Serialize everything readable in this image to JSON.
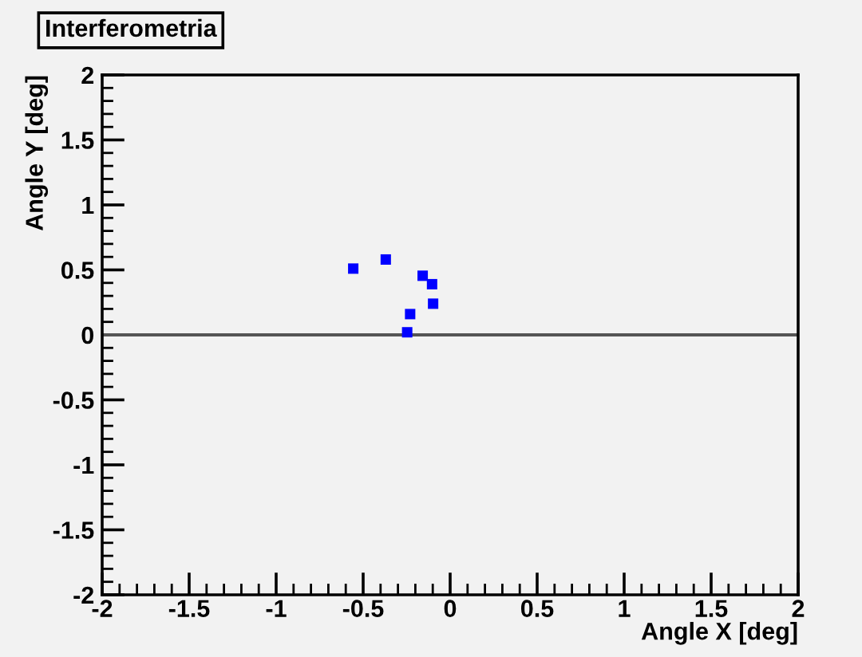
{
  "chart_data": {
    "type": "scatter",
    "title": "Interferometria",
    "xlabel": "Angle X [deg]",
    "ylabel": "Angle Y [deg]",
    "x": [
      -0.557,
      -0.37,
      -0.158,
      -0.104,
      -0.098,
      -0.23,
      -0.247
    ],
    "series": [
      {
        "color": "#0000ff",
        "values": [
          0.51,
          0.58,
          0.455,
          0.39,
          0.24,
          0.16,
          0.02
        ]
      }
    ],
    "marker": "square",
    "xlim": [
      -2,
      2
    ],
    "ylim": [
      -2,
      2
    ],
    "xticks": [
      -2,
      -1.5,
      -1,
      -0.5,
      0,
      0.5,
      1,
      1.5,
      2
    ],
    "yticks": [
      -2,
      -1.5,
      -1,
      -0.5,
      0,
      0.5,
      1,
      1.5,
      2
    ],
    "ref_lines": [
      {
        "axis": "y",
        "value": 0,
        "color": "#555555"
      }
    ],
    "grid": false,
    "legend": false
  }
}
